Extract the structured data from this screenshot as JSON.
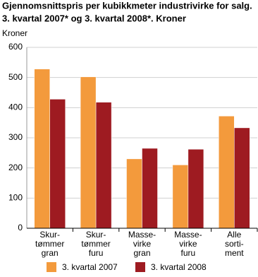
{
  "chart_data": {
    "type": "bar",
    "title": [
      "Gjennomsnittspris per kubikkmeter industrivirke for salg.",
      "3. kvartal 2007* og 3. kvartal 2008*. Kroner"
    ],
    "ylabel": "Kroner",
    "categories": [
      [
        "Skur-",
        "tømmer",
        "gran"
      ],
      [
        "Skur-",
        "tømmer",
        "furu"
      ],
      [
        "Masse-",
        "virke",
        "gran"
      ],
      [
        "Masse-",
        "virke",
        "furu"
      ],
      [
        "Alle",
        "sorti-",
        "ment"
      ]
    ],
    "series": [
      {
        "name": "3. kvartal 2007",
        "color": "#f39a3c",
        "values": [
          528,
          502,
          230,
          210,
          372
        ]
      },
      {
        "name": "3. kvartal 2008",
        "color": "#9e1b21",
        "values": [
          428,
          418,
          265,
          262,
          333
        ]
      }
    ],
    "ylim": [
      0,
      600
    ],
    "yticks": [
      0,
      100,
      200,
      300,
      400,
      500,
      600
    ],
    "grid": true
  }
}
